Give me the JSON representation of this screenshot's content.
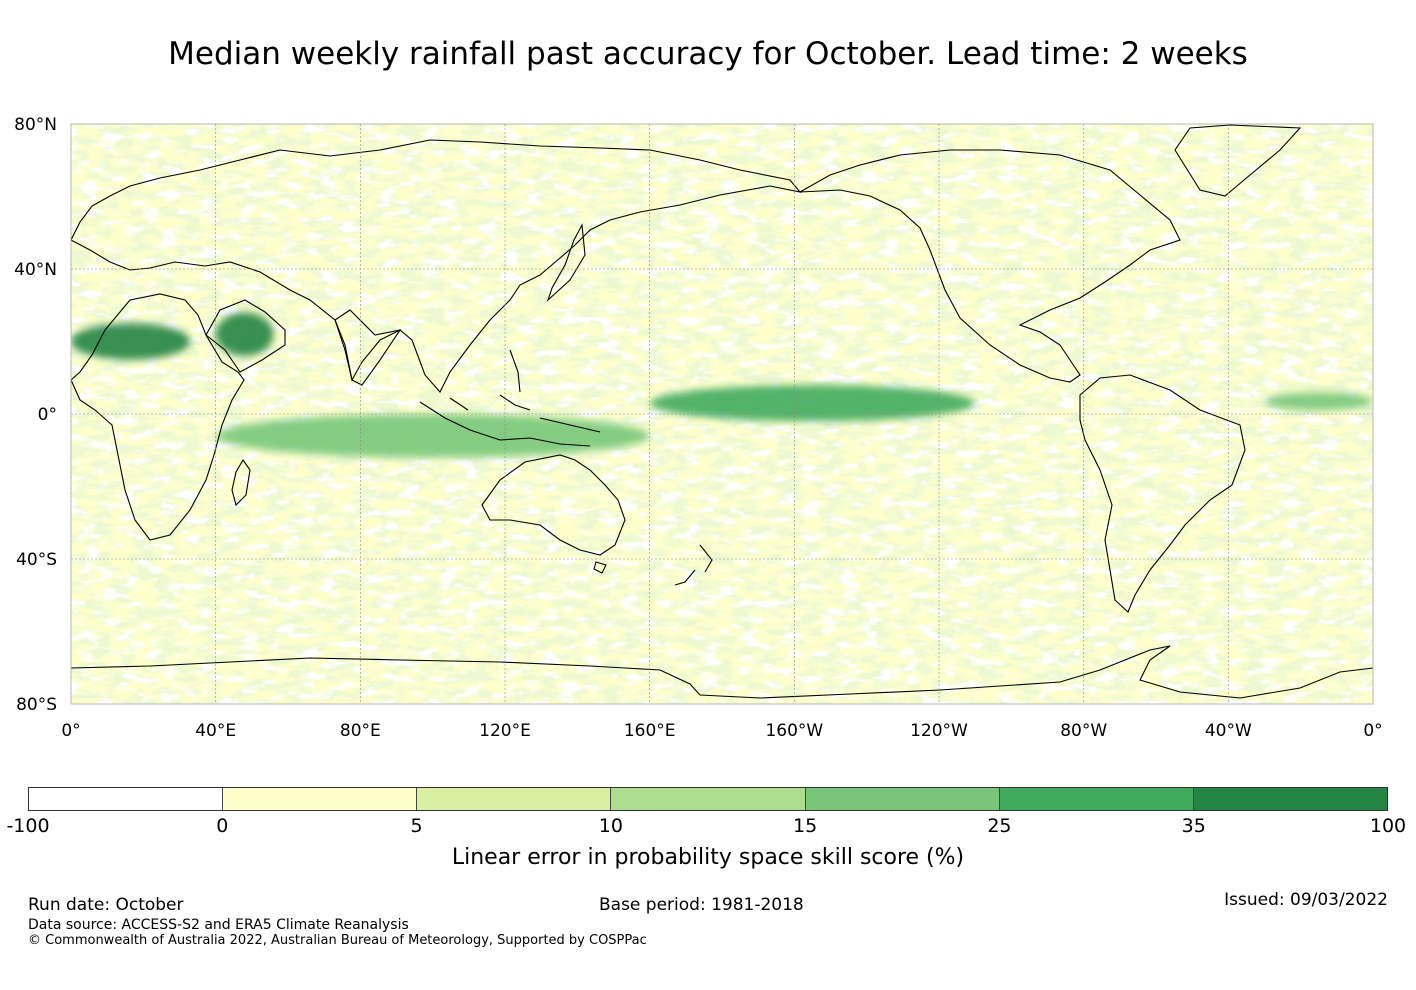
{
  "title": "Median weekly rainfall past accuracy for October. Lead time: 2 weeks",
  "map": {
    "lat_labels": [
      "80°N",
      "40°N",
      "0°",
      "40°S",
      "80°S"
    ],
    "lon_labels": [
      "0°",
      "40°E",
      "80°E",
      "120°E",
      "160°E",
      "160°W",
      "120°W",
      "80°W",
      "40°W",
      "0°"
    ],
    "lat_values": [
      80,
      40,
      0,
      -40,
      -80
    ],
    "lon_values": [
      0,
      40,
      80,
      120,
      160,
      200,
      240,
      280,
      320,
      360
    ],
    "lat_range": [
      -80,
      80
    ],
    "lon_range": [
      0,
      360
    ],
    "colors": {
      "ocean_base": "#ffffcc",
      "land_outline": "#000000",
      "grid": "#8a8a8a"
    },
    "features": [
      {
        "name": "sahara-skill-band",
        "lon": [
          0,
          33
        ],
        "lat": [
          15,
          25
        ],
        "level": 6
      },
      {
        "name": "arabia-skill-patch",
        "lon": [
          40,
          56
        ],
        "lat": [
          16,
          28
        ],
        "level": 6
      },
      {
        "name": "equatorial-pacific-band",
        "lon": [
          160,
          250
        ],
        "lat": [
          -2,
          8
        ],
        "level": 5
      },
      {
        "name": "maritime-continent-band",
        "lon": [
          40,
          160
        ],
        "lat": [
          -12,
          0
        ],
        "level": 4
      },
      {
        "name": "atlantic-itcz-band",
        "lon": [
          330,
          360
        ],
        "lat": [
          1,
          6
        ],
        "level": 4
      }
    ]
  },
  "colorbar": {
    "label": "Linear error in probability space skill score (%)",
    "ticks": [
      "-100",
      "0",
      "5",
      "10",
      "15",
      "25",
      "35",
      "100"
    ],
    "colors": [
      "#ffffff",
      "#ffffcc",
      "#d9f0a3",
      "#addd8e",
      "#78c679",
      "#41ab5d",
      "#238443"
    ]
  },
  "footer": {
    "run_date": "Run date: October",
    "base_period": "Base period: 1981-2018",
    "issued": "Issued: 09/03/2022",
    "source": "Data source: ACCESS-S2 and ERA5 Climate Reanalysis",
    "copyright": "© Commonwealth of Australia 2022, Australian Bureau of Meteorology, Supported by COSPPac"
  }
}
